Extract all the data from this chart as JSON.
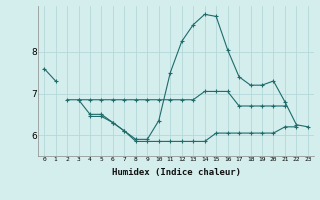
{
  "xlabel": "Humidex (Indice chaleur)",
  "bg_color": "#d4eeed",
  "line_color": "#1e6b6b",
  "grid_color": "#b0d4d4",
  "xlim": [
    -0.5,
    23.5
  ],
  "ylim": [
    5.5,
    9.1
  ],
  "yticks": [
    6,
    7,
    8
  ],
  "xtick_labels": [
    "0",
    "1",
    "2",
    "3",
    "4",
    "5",
    "6",
    "7",
    "8",
    "9",
    "10",
    "11",
    "12",
    "13",
    "14",
    "15",
    "16",
    "17",
    "18",
    "19",
    "20",
    "21",
    "22",
    "23"
  ],
  "lines": [
    {
      "x": [
        0,
        1
      ],
      "y": [
        7.6,
        7.3
      ]
    },
    {
      "x": [
        2,
        3,
        4,
        5,
        6,
        7,
        8,
        9,
        10,
        11,
        12,
        13,
        14,
        15,
        16,
        17,
        18,
        19,
        20,
        21
      ],
      "y": [
        6.85,
        6.85,
        6.85,
        6.85,
        6.85,
        6.85,
        6.85,
        6.85,
        6.85,
        6.85,
        6.85,
        6.85,
        7.05,
        7.05,
        7.05,
        6.7,
        6.7,
        6.7,
        6.7,
        6.7
      ]
    },
    {
      "x": [
        3,
        4,
        5,
        6,
        7,
        8,
        9,
        10,
        11,
        12,
        13,
        14,
        15,
        16,
        17,
        18,
        19,
        20,
        21,
        22,
        23
      ],
      "y": [
        6.85,
        6.5,
        6.5,
        6.3,
        6.1,
        5.9,
        5.9,
        6.35,
        7.5,
        8.25,
        8.65,
        8.9,
        8.85,
        8.05,
        7.4,
        7.2,
        7.2,
        7.3,
        6.8,
        6.25,
        6.2
      ]
    },
    {
      "x": [
        4,
        5,
        6,
        7,
        8,
        9,
        10,
        11,
        12,
        13,
        14,
        15,
        16,
        17,
        18,
        19,
        20,
        21,
        22
      ],
      "y": [
        6.45,
        6.45,
        6.3,
        6.1,
        5.85,
        5.85,
        5.85,
        5.85,
        5.85,
        5.85,
        5.85,
        6.05,
        6.05,
        6.05,
        6.05,
        6.05,
        6.05,
        6.2,
        6.2
      ]
    }
  ]
}
